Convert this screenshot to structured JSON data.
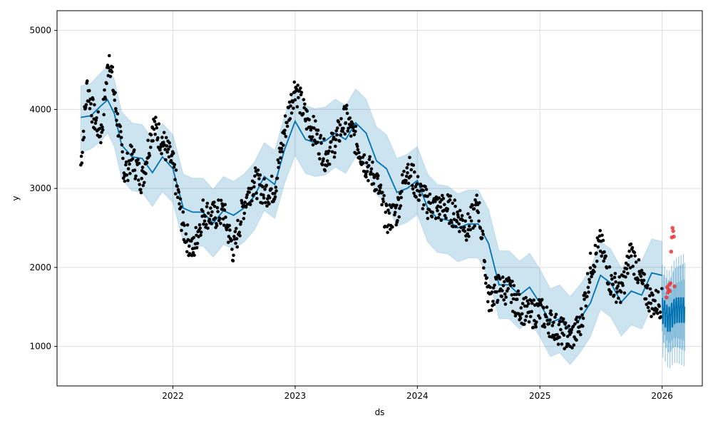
{
  "chart_data": {
    "type": "line",
    "title": "",
    "xlabel": "ds",
    "ylabel": "y",
    "xlim": [
      "2021-01-20",
      "2026-05-01"
    ],
    "ylim": [
      500,
      5250
    ],
    "x_ticks": [
      {
        "date": "2022-01-01",
        "label": "2022"
      },
      {
        "date": "2023-01-01",
        "label": "2023"
      },
      {
        "date": "2024-01-01",
        "label": "2024"
      },
      {
        "date": "2025-01-01",
        "label": "2025"
      },
      {
        "date": "2026-01-01",
        "label": "2026"
      }
    ],
    "y_ticks": [
      1000,
      2000,
      3000,
      4000,
      5000
    ],
    "grid": true,
    "colors": {
      "forecast_line": "#0072B2",
      "uncertainty_band": "#0072B2",
      "history_points": "#000000",
      "holdout_points": "#e8383d"
    },
    "series": [
      {
        "kind": "forecast",
        "points": [
          [
            "2021-04-01",
            3900
          ],
          [
            "2021-05-01",
            3920
          ],
          [
            "2021-06-01",
            4050
          ],
          [
            "2021-06-20",
            4120
          ],
          [
            "2021-07-10",
            3950
          ],
          [
            "2021-08-01",
            3550
          ],
          [
            "2021-09-01",
            3400
          ],
          [
            "2021-10-01",
            3380
          ],
          [
            "2021-11-01",
            3200
          ],
          [
            "2021-12-01",
            3400
          ],
          [
            "2022-01-01",
            3250
          ],
          [
            "2022-02-01",
            2750
          ],
          [
            "2022-03-01",
            2700
          ],
          [
            "2022-04-01",
            2700
          ],
          [
            "2022-05-01",
            2560
          ],
          [
            "2022-06-01",
            2720
          ],
          [
            "2022-07-01",
            2660
          ],
          [
            "2022-08-01",
            2750
          ],
          [
            "2022-09-01",
            2900
          ],
          [
            "2022-10-01",
            3150
          ],
          [
            "2022-11-01",
            3050
          ],
          [
            "2022-12-01",
            3500
          ],
          [
            "2023-01-01",
            3850
          ],
          [
            "2023-02-01",
            3620
          ],
          [
            "2023-03-01",
            3580
          ],
          [
            "2023-04-01",
            3600
          ],
          [
            "2023-05-01",
            3700
          ],
          [
            "2023-06-01",
            3620
          ],
          [
            "2023-07-01",
            3830
          ],
          [
            "2023-08-01",
            3700
          ],
          [
            "2023-09-01",
            3350
          ],
          [
            "2023-10-01",
            3250
          ],
          [
            "2023-11-01",
            2950
          ],
          [
            "2023-12-01",
            3000
          ],
          [
            "2024-01-01",
            3100
          ],
          [
            "2024-02-01",
            2750
          ],
          [
            "2024-03-01",
            2620
          ],
          [
            "2024-04-01",
            2600
          ],
          [
            "2024-05-01",
            2500
          ],
          [
            "2024-06-01",
            2550
          ],
          [
            "2024-07-01",
            2550
          ],
          [
            "2024-08-01",
            2300
          ],
          [
            "2024-09-01",
            1780
          ],
          [
            "2024-10-01",
            1780
          ],
          [
            "2024-11-01",
            1650
          ],
          [
            "2024-12-01",
            1750
          ],
          [
            "2025-01-01",
            1550
          ],
          [
            "2025-02-01",
            1300
          ],
          [
            "2025-03-01",
            1350
          ],
          [
            "2025-04-01",
            1200
          ],
          [
            "2025-05-01",
            1350
          ],
          [
            "2025-06-01",
            1550
          ],
          [
            "2025-07-01",
            1900
          ],
          [
            "2025-08-01",
            1800
          ],
          [
            "2025-09-01",
            1560
          ],
          [
            "2025-10-01",
            1700
          ],
          [
            "2025-11-01",
            1650
          ],
          [
            "2025-12-01",
            1930
          ],
          [
            "2026-01-01",
            1900
          ],
          [
            "2026-02-01",
            1350
          ],
          [
            "2026-03-01",
            1450
          ]
        ],
        "lower": [
          3450,
          3500,
          3600,
          3700,
          3530,
          3120,
          2970,
          2950,
          2770,
          2960,
          2820,
          2320,
          2260,
          2270,
          2130,
          2290,
          2230,
          2320,
          2470,
          2720,
          2620,
          3070,
          3420,
          3190,
          3150,
          3170,
          3270,
          3190,
          3400,
          3270,
          2920,
          2820,
          2520,
          2570,
          2670,
          2320,
          2190,
          2170,
          2070,
          2120,
          2120,
          1870,
          1350,
          1350,
          1220,
          1320,
          1120,
          870,
          920,
          770,
          920,
          1120,
          1470,
          1370,
          1130,
          1270,
          1220,
          1500,
          1470,
          800,
          850
        ],
        "upper": [
          4300,
          4330,
          4470,
          4550,
          4380,
          3970,
          3830,
          3810,
          3630,
          3820,
          3680,
          3180,
          3130,
          3130,
          2990,
          3150,
          3090,
          3180,
          3330,
          3580,
          3480,
          3930,
          4280,
          4050,
          4010,
          4030,
          4130,
          4050,
          4260,
          4130,
          3780,
          3680,
          3380,
          3430,
          3530,
          3180,
          3050,
          3030,
          2930,
          2980,
          2980,
          2730,
          2210,
          2210,
          2080,
          2180,
          1980,
          1730,
          1780,
          1630,
          1780,
          1980,
          2330,
          2230,
          1990,
          2130,
          2080,
          2360,
          2330,
          1950,
          2050
        ]
      },
      {
        "kind": "history",
        "anchors": [
          [
            "2021-04-01",
            3300
          ],
          [
            "2021-04-20",
            4300
          ],
          [
            "2021-05-10",
            3900
          ],
          [
            "2021-06-01",
            3700
          ],
          [
            "2021-06-25",
            4700
          ],
          [
            "2021-07-15",
            4000
          ],
          [
            "2021-08-10",
            3200
          ],
          [
            "2021-09-01",
            3400
          ],
          [
            "2021-10-01",
            3100
          ],
          [
            "2021-11-01",
            3800
          ],
          [
            "2021-12-01",
            3600
          ],
          [
            "2022-01-01",
            3300
          ],
          [
            "2022-02-01",
            2500
          ],
          [
            "2022-03-01",
            2200
          ],
          [
            "2022-04-01",
            2700
          ],
          [
            "2022-05-01",
            2650
          ],
          [
            "2022-06-01",
            2700
          ],
          [
            "2022-07-01",
            2200
          ],
          [
            "2022-08-01",
            2800
          ],
          [
            "2022-09-01",
            3100
          ],
          [
            "2022-10-01",
            2950
          ],
          [
            "2022-11-01",
            3000
          ],
          [
            "2022-12-01",
            3750
          ],
          [
            "2023-01-01",
            4300
          ],
          [
            "2023-02-01",
            3900
          ],
          [
            "2023-03-01",
            3700
          ],
          [
            "2023-04-01",
            3400
          ],
          [
            "2023-05-01",
            3600
          ],
          [
            "2023-06-01",
            3900
          ],
          [
            "2023-07-01",
            3600
          ],
          [
            "2023-08-01",
            3300
          ],
          [
            "2023-09-01",
            3100
          ],
          [
            "2023-10-01",
            2600
          ],
          [
            "2023-11-01",
            2700
          ],
          [
            "2023-12-01",
            3300
          ],
          [
            "2024-01-01",
            3000
          ],
          [
            "2024-02-01",
            2800
          ],
          [
            "2024-03-01",
            2750
          ],
          [
            "2024-04-01",
            2750
          ],
          [
            "2024-05-01",
            2650
          ],
          [
            "2024-06-01",
            2500
          ],
          [
            "2024-07-01",
            2800
          ],
          [
            "2024-08-01",
            1600
          ],
          [
            "2024-09-01",
            1750
          ],
          [
            "2024-10-01",
            1700
          ],
          [
            "2024-11-01",
            1500
          ],
          [
            "2024-12-01",
            1400
          ],
          [
            "2025-01-01",
            1450
          ],
          [
            "2025-02-01",
            1300
          ],
          [
            "2025-03-01",
            1200
          ],
          [
            "2025-04-01",
            1100
          ],
          [
            "2025-05-01",
            1250
          ],
          [
            "2025-06-01",
            2000
          ],
          [
            "2025-07-01",
            2300
          ],
          [
            "2025-08-01",
            1800
          ],
          [
            "2025-09-01",
            1700
          ],
          [
            "2025-10-01",
            2200
          ],
          [
            "2025-11-01",
            1800
          ],
          [
            "2025-12-01",
            1550
          ],
          [
            "2026-01-01",
            1550
          ]
        ]
      },
      {
        "kind": "holdout",
        "points": [
          [
            "2026-01-14",
            1620
          ],
          [
            "2026-01-16",
            1750
          ],
          [
            "2026-01-18",
            1680
          ],
          [
            "2026-01-20",
            1720
          ],
          [
            "2026-01-22",
            1780
          ],
          [
            "2026-01-24",
            1700
          ],
          [
            "2026-01-26",
            1800
          ],
          [
            "2026-01-28",
            2200
          ],
          [
            "2026-01-30",
            2380
          ],
          [
            "2026-02-01",
            2500
          ],
          [
            "2026-02-03",
            2460
          ],
          [
            "2026-02-05",
            2390
          ],
          [
            "2026-02-07",
            1760
          ]
        ]
      }
    ]
  }
}
